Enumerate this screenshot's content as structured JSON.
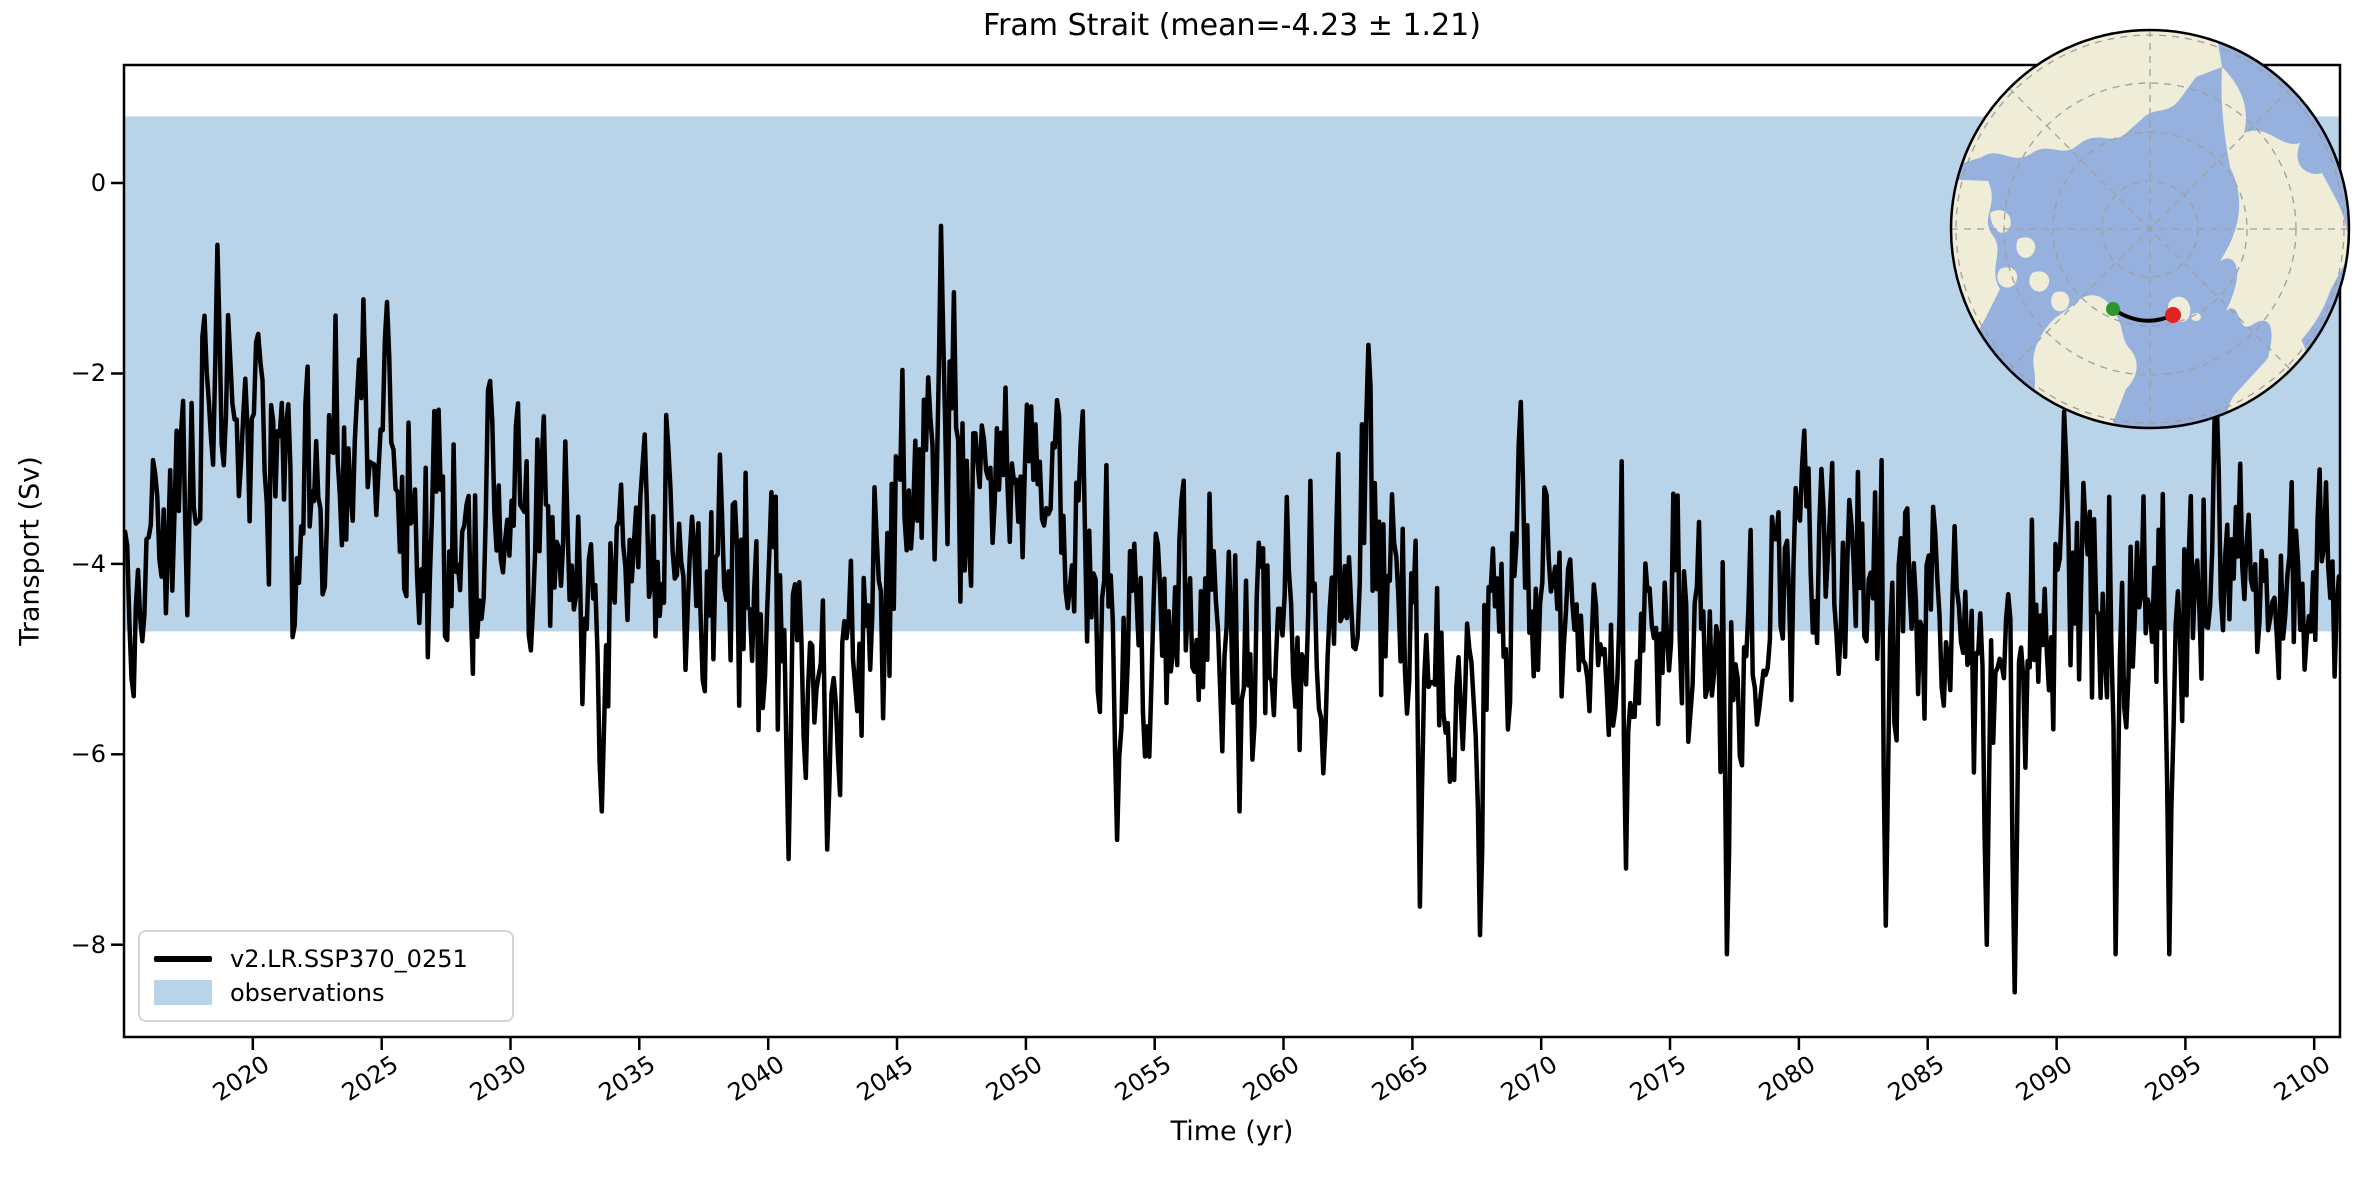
{
  "title": "Fram Strait (mean=-4.23 ± 1.21)",
  "axes": {
    "xlabel": "Time (yr)",
    "ylabel": "Transport (Sv)",
    "x_tick_labels": [
      "2020",
      "2025",
      "2030",
      "2035",
      "2040",
      "2045",
      "2050",
      "2055",
      "2060",
      "2065",
      "2070",
      "2075",
      "2080",
      "2085",
      "2090",
      "2095",
      "2100"
    ],
    "y_tick_labels": [
      "0",
      "−2",
      "−4",
      "−6",
      "−8"
    ]
  },
  "legend": {
    "entries": [
      {
        "label": "v2.LR.SSP370_0251",
        "type": "line",
        "color": "#000000"
      },
      {
        "label": "observations",
        "type": "patch",
        "color": "#b9d3e8"
      }
    ]
  },
  "colors": {
    "line": "#000000",
    "band": "#b9d3e8",
    "spine": "#000000",
    "map_ocean": "#97b1de",
    "map_land": "#efecd8",
    "map_graticule": "#9f9f9f",
    "map_section_line": "#000000",
    "start_dot_green": "#2e962e",
    "end_dot_red": "#e32222"
  },
  "chart_data": {
    "type": "line",
    "title": "Fram Strait (mean=-4.23 ± 1.21)",
    "xlabel": "Time (yr)",
    "ylabel": "Transport (Sv)",
    "xlim": [
      2015,
      2101
    ],
    "ylim": [
      -8.97,
      1.24
    ],
    "x_ticks": [
      2020,
      2025,
      2030,
      2035,
      2040,
      2045,
      2050,
      2055,
      2060,
      2065,
      2070,
      2075,
      2080,
      2085,
      2090,
      2095,
      2100
    ],
    "y_ticks": [
      0,
      -2,
      -4,
      -6,
      -8
    ],
    "grid": false,
    "legend_position": "lower left",
    "series_name": "v2.LR.SSP370_0251",
    "series_stats": {
      "mean": -4.23,
      "std": 1.21,
      "units": "Sv",
      "frequency": "monthly"
    },
    "observations_band": {
      "label": "observations",
      "min": -4.71,
      "max": 0.7
    },
    "annual_mean_estimates_start_year": 2015,
    "annual_mean_estimates": [
      -4.6,
      -3.7,
      -3.1,
      -2.5,
      -2.2,
      -2.7,
      -3.3,
      -3.2,
      -2.9,
      -2.6,
      -2.9,
      -3.4,
      -3.6,
      -3.7,
      -3.4,
      -3.6,
      -3.8,
      -4.1,
      -4.5,
      -3.9,
      -3.7,
      -3.9,
      -4.2,
      -4.0,
      -4.3,
      -4.6,
      -4.9,
      -5.1,
      -4.8,
      -4.1,
      -3.3,
      -2.8,
      -3.1,
      -3.3,
      -3.1,
      -2.9,
      -3.4,
      -3.8,
      -4.6,
      -5.0,
      -4.6,
      -4.4,
      -4.8,
      -4.7,
      -4.9,
      -4.7,
      -4.5,
      -4.1,
      -3.7,
      -4.3,
      -4.9,
      -5.1,
      -4.9,
      -4.4,
      -4.0,
      -4.4,
      -4.7,
      -4.6,
      -4.9,
      -4.8,
      -4.6,
      -5.0,
      -5.2,
      -4.7,
      -4.1,
      -3.7,
      -4.0,
      -4.4,
      -4.6,
      -4.3,
      -4.4,
      -4.7,
      -5.1,
      -5.2,
      -4.5,
      -3.9,
      -4.2,
      -4.6,
      -4.3,
      -4.9,
      -4.2,
      -3.7,
      -4.1,
      -4.4,
      -4.2,
      -4.0
    ],
    "notable_extremes": [
      [
        2015.3,
        -5.2
      ],
      [
        2018.6,
        -0.65
      ],
      [
        2025.2,
        -1.25
      ],
      [
        2033.5,
        -6.6
      ],
      [
        2040.8,
        -7.1
      ],
      [
        2042.3,
        -7.0
      ],
      [
        2046.7,
        -0.45
      ],
      [
        2053.5,
        -6.9
      ],
      [
        2058.3,
        -6.6
      ],
      [
        2061.5,
        -6.2
      ],
      [
        2063.3,
        -1.7
      ],
      [
        2065.3,
        -7.6
      ],
      [
        2067.6,
        -7.9
      ],
      [
        2069.2,
        -2.3
      ],
      [
        2073.3,
        -7.2
      ],
      [
        2077.2,
        -8.1
      ],
      [
        2080.2,
        -2.6
      ],
      [
        2083.4,
        -7.8
      ],
      [
        2087.3,
        -8.0
      ],
      [
        2088.4,
        -8.5
      ],
      [
        2090.3,
        -2.4
      ],
      [
        2092.3,
        -8.1
      ],
      [
        2094.4,
        -8.1
      ],
      [
        2096.2,
        -2.2
      ]
    ],
    "monthly_variability_sd": 0.75,
    "noise_seed": 20150251
  },
  "inset_map": {
    "projection": "north-polar",
    "section_name": "Fram Strait",
    "endpoint_colors": [
      "green",
      "red"
    ]
  }
}
